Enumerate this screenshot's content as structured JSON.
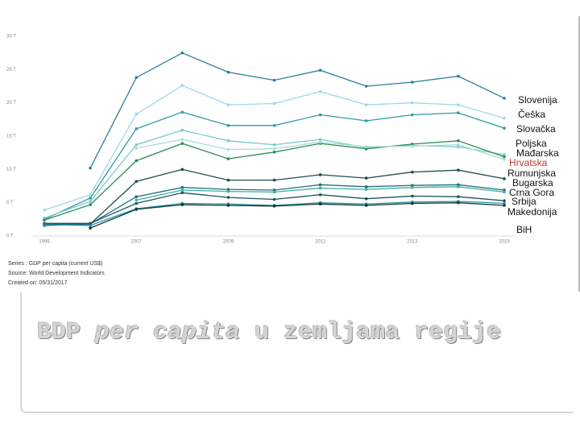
{
  "chart_data": {
    "type": "line",
    "title": [
      "BDP ",
      "per capita",
      " u zemljama regije"
    ],
    "notes": [
      "Series : GDP per capita (current US$)",
      "Source: World Development Indicators",
      "Created on: 05/31/2017"
    ],
    "categories": [
      "1996",
      null,
      "2007",
      null,
      "2009",
      null,
      "2011",
      null,
      "2013",
      null,
      "2015"
    ],
    "ylim": [
      0,
      30
    ],
    "yticks": [
      {
        "value": 0,
        "label": "0 T"
      },
      {
        "value": 5,
        "label": "5 T"
      },
      {
        "value": 10,
        "label": "10 T"
      },
      {
        "value": 15,
        "label": "15 T"
      },
      {
        "value": 20,
        "label": "20 T"
      },
      {
        "value": 25,
        "label": "25 T"
      },
      {
        "value": 30,
        "label": "30 T"
      }
    ],
    "grid": false,
    "legend": "right",
    "series": [
      {
        "name": "Slovenija",
        "color": "#2a7f9a",
        "label_color": "#111111",
        "values": [
          null,
          10.2,
          23.8,
          27.5,
          24.6,
          23.4,
          24.9,
          22.5,
          23.1,
          24.0,
          20.7
        ]
      },
      {
        "name": "Češka",
        "color": "#9fd8e6",
        "label_color": "#111111",
        "values": [
          3.9,
          6.2,
          18.3,
          22.6,
          19.7,
          19.9,
          21.7,
          19.7,
          20.0,
          19.7,
          17.7
        ]
      },
      {
        "name": "Slovačka",
        "color": "#2e9aa8",
        "label_color": "#111111",
        "values": [
          2.5,
          5.7,
          16.1,
          18.6,
          16.6,
          16.6,
          18.2,
          17.3,
          18.2,
          18.5,
          16.2
        ]
      },
      {
        "name": "Poljska",
        "color": "#7cc9cf",
        "label_color": "#111111",
        "values": [
          2.7,
          5.2,
          13.7,
          15.9,
          14.3,
          13.7,
          14.5,
          13.3,
          13.6,
          13.4,
          12.2
        ]
      },
      {
        "name": "Mađarska",
        "color": "#2e8b57",
        "label_color": "#111111",
        "values": [
          2.4,
          4.7,
          11.3,
          13.9,
          11.6,
          12.6,
          13.9,
          13.1,
          13.8,
          14.3,
          11.9
        ]
      },
      {
        "name": "Hrvatska",
        "color": "#a8dcd8",
        "label_color": "#c0392b",
        "values": [
          null,
          null,
          13.2,
          14.5,
          13.0,
          13.1,
          14.1,
          13.4,
          13.5,
          13.7,
          11.5
        ]
      },
      {
        "name": "Rumunjska",
        "color": "#1f4a4a",
        "label_color": "#111111",
        "values": [
          1.6,
          1.8,
          8.2,
          10.0,
          8.4,
          8.4,
          9.2,
          8.7,
          9.6,
          9.9,
          8.6
        ]
      },
      {
        "name": "Bugarska",
        "color": "#1e6f80",
        "label_color": "#111111",
        "values": [
          1.8,
          1.8,
          5.9,
          7.3,
          7.0,
          6.9,
          7.7,
          7.4,
          7.6,
          7.7,
          6.9
        ]
      },
      {
        "name": "Crna Gora",
        "color": "#3bb0a0",
        "label_color": "#111111",
        "values": [
          null,
          null,
          5.4,
          6.9,
          6.7,
          6.6,
          7.2,
          7.0,
          7.3,
          7.4,
          6.6
        ]
      },
      {
        "name": "Srbija",
        "color": "#1a5560",
        "label_color": "#111111",
        "values": [
          1.9,
          1.9,
          4.9,
          6.5,
          5.8,
          5.5,
          6.2,
          5.6,
          6.0,
          5.9,
          5.3
        ]
      },
      {
        "name": "Makedonija",
        "color": "#2a8fa0",
        "label_color": "#111111",
        "values": [
          1.7,
          1.6,
          4.1,
          4.9,
          4.8,
          4.6,
          5.0,
          4.8,
          5.1,
          5.2,
          4.9
        ]
      },
      {
        "name": "BiH",
        "color": "#103838",
        "label_color": "#111111",
        "values": [
          null,
          1.2,
          4.0,
          4.7,
          4.6,
          4.5,
          4.8,
          4.6,
          4.9,
          5.0,
          4.6
        ]
      }
    ]
  }
}
